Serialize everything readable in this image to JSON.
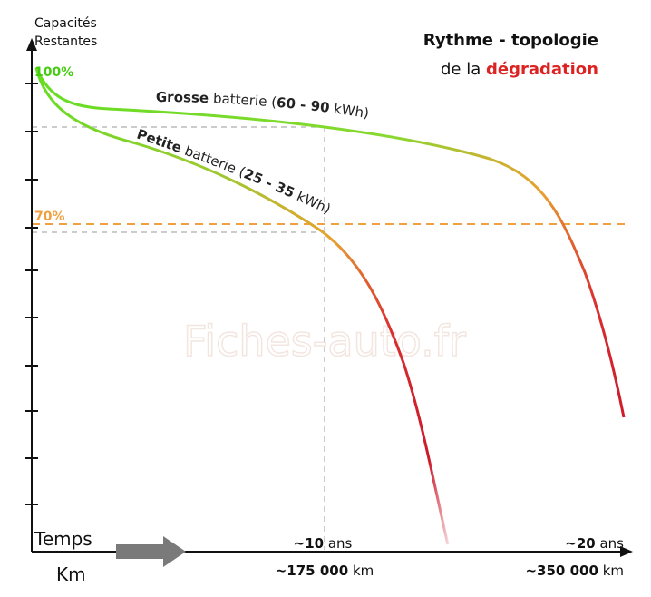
{
  "axis": {
    "y_label_1": "Capacités",
    "y_label_2": "Restantes",
    "x_label_1": "Temps",
    "x_label_2": "Km"
  },
  "title": {
    "line1": "Rythme - topologie",
    "line2_prefix": "de la",
    "line2_highlight": "dégradation"
  },
  "levels": [
    "100%",
    "70%"
  ],
  "curves": [
    {
      "parts": [
        "Grosse",
        " batterie (",
        "60 - 90",
        " kWh)"
      ]
    },
    {
      "parts": [
        "Petite",
        " batterie (",
        "25 - 35",
        " kWh)"
      ]
    }
  ],
  "markers": [
    {
      "value": "~10",
      "unit": "ans",
      "distance": "~175 000",
      "distance_unit": "km"
    },
    {
      "value": "~20",
      "unit": "ans",
      "distance": "~350 000",
      "distance_unit": "km"
    }
  ],
  "watermark": "Fiches-auto.fr"
}
